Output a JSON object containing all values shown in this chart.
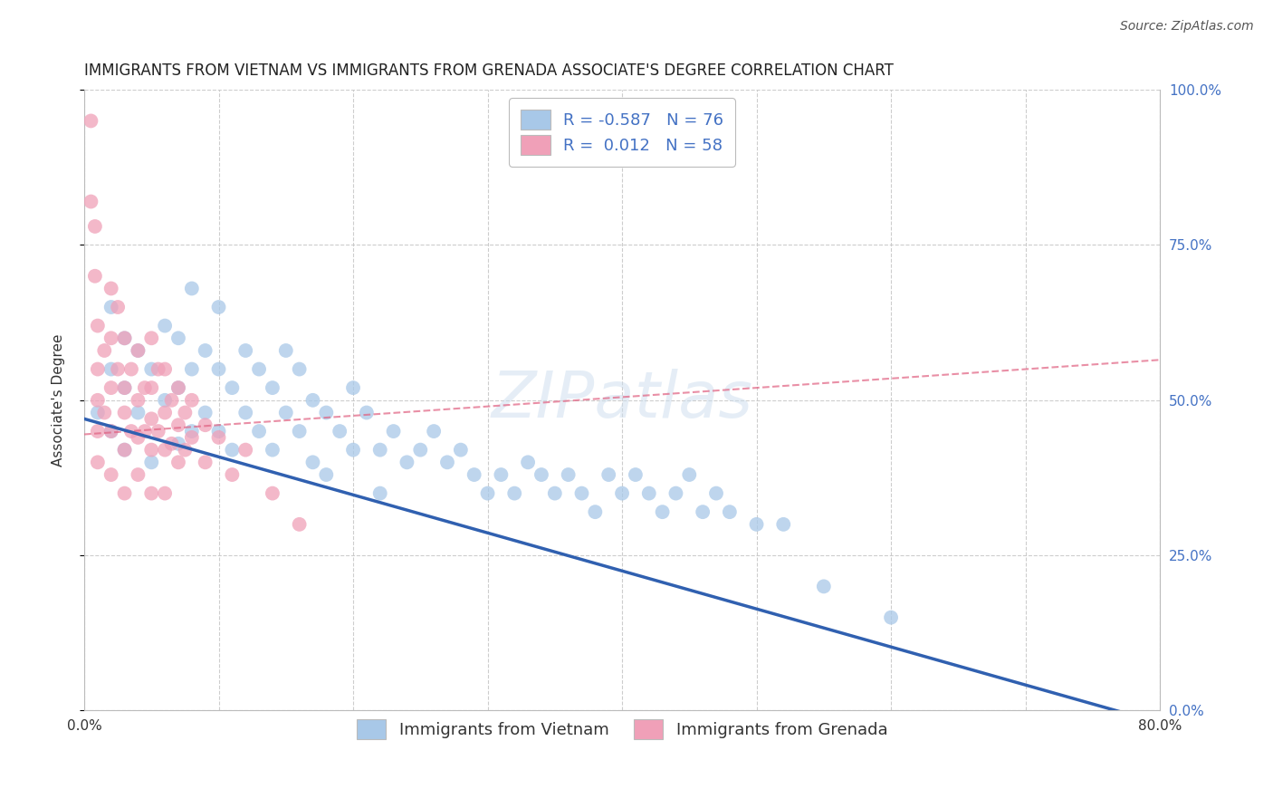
{
  "title": "IMMIGRANTS FROM VIETNAM VS IMMIGRANTS FROM GRENADA ASSOCIATE'S DEGREE CORRELATION CHART",
  "source": "Source: ZipAtlas.com",
  "ylabel": "Associate's Degree",
  "xmin": 0.0,
  "xmax": 0.8,
  "ymin": 0.0,
  "ymax": 1.0,
  "ytick_vals": [
    0.0,
    0.25,
    0.5,
    0.75,
    1.0
  ],
  "ytick_labels_right": [
    "0.0%",
    "25.0%",
    "50.0%",
    "75.0%",
    "100.0%"
  ],
  "xtick_vals": [
    0.0,
    0.1,
    0.2,
    0.3,
    0.4,
    0.5,
    0.6,
    0.7,
    0.8
  ],
  "xtick_labels": [
    "0.0%",
    "",
    "",
    "",
    "",
    "",
    "",
    "",
    "80.0%"
  ],
  "series": [
    {
      "name": "Immigrants from Vietnam",
      "R": -0.587,
      "N": 76,
      "color": "#a8c8e8",
      "line_color": "#3060b0",
      "line_y0": 0.47,
      "line_y1": -0.02,
      "scatter_x": [
        0.01,
        0.02,
        0.02,
        0.02,
        0.03,
        0.03,
        0.03,
        0.04,
        0.04,
        0.05,
        0.05,
        0.06,
        0.06,
        0.07,
        0.07,
        0.07,
        0.08,
        0.08,
        0.08,
        0.09,
        0.09,
        0.1,
        0.1,
        0.1,
        0.11,
        0.11,
        0.12,
        0.12,
        0.13,
        0.13,
        0.14,
        0.14,
        0.15,
        0.15,
        0.16,
        0.16,
        0.17,
        0.17,
        0.18,
        0.18,
        0.19,
        0.2,
        0.2,
        0.21,
        0.22,
        0.22,
        0.23,
        0.24,
        0.25,
        0.26,
        0.27,
        0.28,
        0.29,
        0.3,
        0.31,
        0.32,
        0.33,
        0.34,
        0.35,
        0.36,
        0.37,
        0.38,
        0.39,
        0.4,
        0.41,
        0.42,
        0.43,
        0.44,
        0.45,
        0.46,
        0.47,
        0.48,
        0.5,
        0.52,
        0.55,
        0.6
      ],
      "scatter_y": [
        0.48,
        0.65,
        0.55,
        0.45,
        0.6,
        0.52,
        0.42,
        0.58,
        0.48,
        0.55,
        0.4,
        0.62,
        0.5,
        0.6,
        0.52,
        0.43,
        0.68,
        0.55,
        0.45,
        0.58,
        0.48,
        0.65,
        0.55,
        0.45,
        0.52,
        0.42,
        0.58,
        0.48,
        0.55,
        0.45,
        0.52,
        0.42,
        0.58,
        0.48,
        0.55,
        0.45,
        0.5,
        0.4,
        0.48,
        0.38,
        0.45,
        0.52,
        0.42,
        0.48,
        0.42,
        0.35,
        0.45,
        0.4,
        0.42,
        0.45,
        0.4,
        0.42,
        0.38,
        0.35,
        0.38,
        0.35,
        0.4,
        0.38,
        0.35,
        0.38,
        0.35,
        0.32,
        0.38,
        0.35,
        0.38,
        0.35,
        0.32,
        0.35,
        0.38,
        0.32,
        0.35,
        0.32,
        0.3,
        0.3,
        0.2,
        0.15
      ]
    },
    {
      "name": "Immigrants from Grenada",
      "R": 0.012,
      "N": 58,
      "color": "#f0a0b8",
      "line_color": "#e06080",
      "line_y0": 0.445,
      "line_y1": 0.565,
      "scatter_x": [
        0.005,
        0.005,
        0.008,
        0.008,
        0.01,
        0.01,
        0.01,
        0.01,
        0.01,
        0.015,
        0.015,
        0.02,
        0.02,
        0.02,
        0.02,
        0.02,
        0.025,
        0.025,
        0.03,
        0.03,
        0.03,
        0.03,
        0.03,
        0.035,
        0.035,
        0.04,
        0.04,
        0.04,
        0.04,
        0.045,
        0.045,
        0.05,
        0.05,
        0.05,
        0.05,
        0.05,
        0.055,
        0.055,
        0.06,
        0.06,
        0.06,
        0.06,
        0.065,
        0.065,
        0.07,
        0.07,
        0.07,
        0.075,
        0.075,
        0.08,
        0.08,
        0.09,
        0.09,
        0.1,
        0.11,
        0.12,
        0.14,
        0.16
      ],
      "scatter_y": [
        0.95,
        0.82,
        0.78,
        0.7,
        0.62,
        0.55,
        0.5,
        0.45,
        0.4,
        0.58,
        0.48,
        0.68,
        0.6,
        0.52,
        0.45,
        0.38,
        0.65,
        0.55,
        0.6,
        0.52,
        0.48,
        0.42,
        0.35,
        0.55,
        0.45,
        0.58,
        0.5,
        0.44,
        0.38,
        0.52,
        0.45,
        0.6,
        0.52,
        0.47,
        0.42,
        0.35,
        0.55,
        0.45,
        0.55,
        0.48,
        0.42,
        0.35,
        0.5,
        0.43,
        0.52,
        0.46,
        0.4,
        0.48,
        0.42,
        0.5,
        0.44,
        0.46,
        0.4,
        0.44,
        0.38,
        0.42,
        0.35,
        0.3
      ]
    }
  ],
  "watermark": "ZIPatlas",
  "background_color": "#ffffff",
  "grid_color": "#c8c8c8",
  "title_fontsize": 12,
  "axis_label_fontsize": 11,
  "tick_fontsize": 11,
  "legend_fontsize": 13,
  "right_yaxis_color": "#4472c4",
  "source_fontsize": 10
}
